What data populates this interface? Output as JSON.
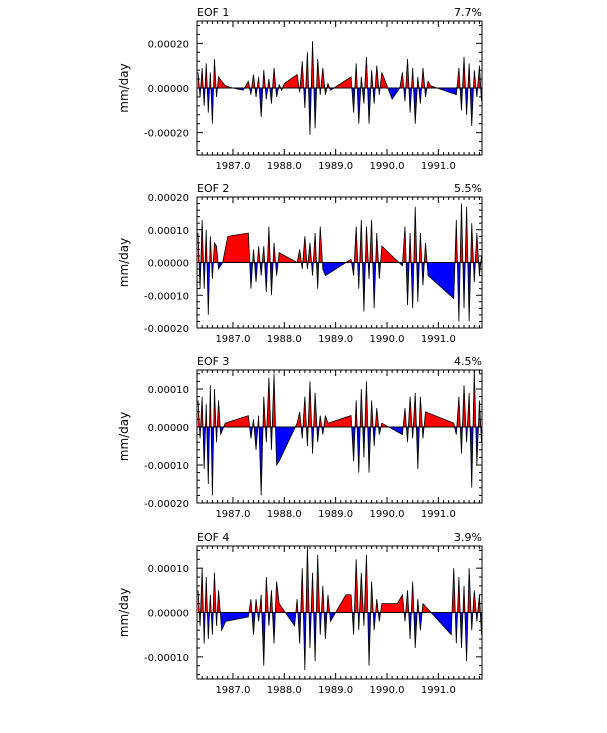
{
  "chart_data": [
    {
      "type": "area",
      "title": "EOF 1",
      "variance": "7.7%",
      "ylabel": "mm/day",
      "ylim": [
        -0.0003,
        0.0003
      ],
      "yticks": [
        0.0002,
        0.0,
        -0.0002
      ],
      "yticklabels": [
        "0.00020",
        "0.00000",
        "-0.00020"
      ],
      "xlim": [
        1986.3,
        1991.85
      ],
      "xticks": [
        1987.0,
        1988.0,
        1989.0,
        1990.0,
        1991.0
      ],
      "xticklabels": [
        "1987.0",
        "1988.0",
        "1989.0",
        "1990.0",
        "1991.0"
      ],
      "positive_color": "#ff0000",
      "negative_color": "#0000ff",
      "series": {
        "x": [
          1986.32,
          1986.36,
          1986.4,
          1986.44,
          1986.48,
          1986.52,
          1986.56,
          1986.6,
          1986.64,
          1986.68,
          1986.72,
          1986.78,
          1986.85,
          1986.92,
          1987.0,
          1987.1,
          1987.2,
          1987.3,
          1987.35,
          1987.4,
          1987.45,
          1987.5,
          1987.55,
          1987.6,
          1987.65,
          1987.7,
          1987.75,
          1987.8,
          1987.85,
          1987.9,
          1987.95,
          1988.0,
          1988.25,
          1988.3,
          1988.35,
          1988.4,
          1988.45,
          1988.5,
          1988.55,
          1988.6,
          1988.65,
          1988.7,
          1988.75,
          1988.8,
          1988.85,
          1988.9,
          1989.3,
          1989.35,
          1989.4,
          1989.45,
          1989.5,
          1989.55,
          1989.6,
          1989.65,
          1989.7,
          1989.75,
          1989.8,
          1989.85,
          1989.9,
          1990.1,
          1990.25,
          1990.3,
          1990.35,
          1990.4,
          1990.45,
          1990.5,
          1990.55,
          1990.6,
          1990.65,
          1990.7,
          1990.75,
          1990.8,
          1990.85,
          1991.35,
          1991.4,
          1991.45,
          1991.5,
          1991.55,
          1991.6,
          1991.65,
          1991.7,
          1991.75,
          1991.8,
          1991.84
        ],
        "y": [
          7e-05,
          -4e-05,
          9e-05,
          -8e-05,
          0.00011,
          -0.00011,
          7e-05,
          -0.00016,
          0.00013,
          -4e-05,
          5e-05,
          3e-05,
          1e-05,
          5e-06,
          0.0,
          -5e-06,
          -1e-05,
          3e-05,
          -3e-05,
          6e-05,
          -4e-05,
          5e-05,
          -0.00013,
          8e-05,
          -5e-05,
          4e-05,
          -7e-05,
          9e-05,
          -4e-05,
          1.5e-05,
          -1e-05,
          2e-05,
          6e-05,
          -2e-05,
          0.00012,
          -9e-05,
          0.00016,
          -0.00021,
          0.00021,
          -0.00018,
          0.00013,
          -3e-05,
          9e-05,
          -3e-05,
          2e-05,
          -1e-05,
          5e-05,
          -0.00011,
          0.00011,
          -0.00016,
          5e-05,
          -7e-05,
          0.00014,
          -0.00016,
          8e-05,
          -7e-05,
          0.0001,
          -3e-05,
          7e-05,
          -5e-05,
          0.0,
          7e-05,
          -6e-05,
          0.00013,
          -0.00011,
          9e-05,
          -0.00016,
          5e-05,
          -7e-05,
          9e-05,
          -4e-05,
          3e-05,
          1e-05,
          -3e-05,
          9e-05,
          -0.0001,
          0.00014,
          -0.00012,
          0.00011,
          -0.00017,
          8e-05,
          -4e-05,
          0.0001,
          -6e-05
        ]
      }
    },
    {
      "type": "area",
      "title": "EOF 2",
      "variance": "5.5%",
      "ylabel": "mm/day",
      "ylim": [
        -0.0002,
        0.0002
      ],
      "yticks": [
        0.0002,
        0.0001,
        0.0,
        -0.0001,
        -0.0002
      ],
      "yticklabels": [
        "0.00020",
        "0.00010",
        "0.00000",
        "-0.00010",
        "-0.00020"
      ],
      "xlim": [
        1986.3,
        1991.85
      ],
      "xticks": [
        1987.0,
        1988.0,
        1989.0,
        1990.0,
        1991.0
      ],
      "xticklabels": [
        "1987.0",
        "1988.0",
        "1989.0",
        "1990.0",
        "1991.0"
      ],
      "positive_color": "#ff0000",
      "negative_color": "#0000ff",
      "series": {
        "x": [
          1986.32,
          1986.36,
          1986.4,
          1986.44,
          1986.48,
          1986.52,
          1986.56,
          1986.6,
          1986.64,
          1986.68,
          1986.72,
          1986.8,
          1986.9,
          1987.3,
          1987.35,
          1987.4,
          1987.45,
          1987.5,
          1987.55,
          1987.6,
          1987.65,
          1987.7,
          1987.75,
          1987.8,
          1987.85,
          1987.9,
          1988.25,
          1988.3,
          1988.35,
          1988.4,
          1988.45,
          1988.5,
          1988.55,
          1988.6,
          1988.65,
          1988.7,
          1988.75,
          1988.8,
          1989.3,
          1989.35,
          1989.4,
          1989.45,
          1989.5,
          1989.55,
          1989.6,
          1989.65,
          1989.7,
          1989.75,
          1989.8,
          1989.85,
          1989.9,
          1990.3,
          1990.35,
          1990.4,
          1990.45,
          1990.5,
          1990.55,
          1990.6,
          1990.65,
          1990.7,
          1990.75,
          1990.8,
          1991.3,
          1991.35,
          1991.4,
          1991.45,
          1991.5,
          1991.55,
          1991.6,
          1991.65,
          1991.7,
          1991.75,
          1991.8,
          1991.84
        ],
        "y": [
          9e-05,
          -8e-05,
          0.00013,
          -8e-05,
          0.0001,
          -0.00016,
          8e-05,
          -5e-05,
          6e-05,
          5e-05,
          -2e-05,
          0.0,
          8e-05,
          9e-05,
          -8e-05,
          4e-05,
          -6e-05,
          5e-05,
          -4e-05,
          5e-05,
          -9e-05,
          0.00011,
          -0.0001,
          6e-05,
          -4e-05,
          3e-05,
          0.0,
          4e-05,
          -2e-05,
          8e-05,
          -2e-05,
          6e-05,
          -4e-05,
          9e-05,
          -8e-05,
          0.00011,
          -2e-05,
          -4e-05,
          1e-05,
          -4e-05,
          0.00011,
          -8e-05,
          0.00013,
          -0.00015,
          0.00011,
          -5e-05,
          0.00013,
          -0.00014,
          9e-05,
          -5e-05,
          5e-05,
          -1e-05,
          0.00011,
          -0.00013,
          9e-05,
          -0.00014,
          0.00017,
          -0.00012,
          9e-05,
          -7e-05,
          6e-05,
          -4e-05,
          -0.00011,
          0.00013,
          -0.00018,
          0.00018,
          -0.00014,
          0.00017,
          -0.00018,
          0.00012,
          -6e-05,
          9e-05,
          -4e-05,
          2e-05
        ]
      }
    },
    {
      "type": "area",
      "title": "EOF 3",
      "variance": "4.5%",
      "ylabel": "mm/day",
      "ylim": [
        -0.0002,
        0.00015
      ],
      "yticks": [
        0.0001,
        0.0,
        -0.0001,
        -0.0002
      ],
      "yticklabels": [
        "0.00010",
        "0.00000",
        "-0.00010",
        "-0.00020"
      ],
      "xlim": [
        1986.3,
        1991.85
      ],
      "xticks": [
        1987.0,
        1988.0,
        1989.0,
        1990.0,
        1991.0
      ],
      "xticklabels": [
        "1987.0",
        "1988.0",
        "1989.0",
        "1990.0",
        "1991.0"
      ],
      "positive_color": "#ff0000",
      "negative_color": "#0000ff",
      "series": {
        "x": [
          1986.32,
          1986.36,
          1986.4,
          1986.44,
          1986.48,
          1986.52,
          1986.56,
          1986.6,
          1986.64,
          1986.68,
          1986.72,
          1986.76,
          1986.85,
          1987.3,
          1987.35,
          1987.4,
          1987.45,
          1987.5,
          1987.55,
          1987.6,
          1987.65,
          1987.7,
          1987.75,
          1987.8,
          1987.85,
          1987.9,
          1988.25,
          1988.3,
          1988.35,
          1988.4,
          1988.45,
          1988.5,
          1988.55,
          1988.6,
          1988.65,
          1988.7,
          1988.75,
          1988.8,
          1988.85,
          1989.3,
          1989.35,
          1989.4,
          1989.45,
          1989.5,
          1989.55,
          1989.6,
          1989.65,
          1989.7,
          1989.75,
          1989.8,
          1989.85,
          1989.9,
          1990.3,
          1990.35,
          1990.4,
          1990.45,
          1990.5,
          1990.55,
          1990.6,
          1990.65,
          1990.7,
          1990.75,
          1991.3,
          1991.35,
          1991.4,
          1991.45,
          1991.5,
          1991.55,
          1991.6,
          1991.65,
          1991.7,
          1991.75,
          1991.8,
          1991.84
        ],
        "y": [
          7e-05,
          -3e-05,
          8e-05,
          -0.00011,
          6e-05,
          -0.00015,
          0.00011,
          -0.00018,
          0.0001,
          -4e-05,
          7e-05,
          -2e-05,
          1e-05,
          3e-05,
          -3e-05,
          2e-05,
          -6e-05,
          3e-05,
          -0.00018,
          8e-05,
          -4e-05,
          0.00013,
          -6e-05,
          0.00014,
          -0.0001,
          -9e-05,
          1e-05,
          4e-05,
          -3e-05,
          8e-05,
          -5e-05,
          0.00012,
          -7e-05,
          9e-05,
          -4e-05,
          3e-05,
          -2e-05,
          3e-05,
          1e-05,
          3e-05,
          -9e-05,
          7e-05,
          -0.00012,
          0.0001,
          -8e-05,
          0.00012,
          -0.00012,
          7e-05,
          -5e-05,
          5e-05,
          -2e-05,
          1e-05,
          -2e-05,
          5e-05,
          -4e-05,
          8e-05,
          -3e-05,
          9e-05,
          -0.00011,
          8e-05,
          -3e-05,
          4e-05,
          1e-05,
          -2e-05,
          8e-05,
          -7e-05,
          0.00011,
          -4e-05,
          9e-05,
          -0.00016,
          0.00015,
          -0.0001,
          7e-05,
          -4e-05
        ]
      }
    },
    {
      "type": "area",
      "title": "EOF 4",
      "variance": "3.9%",
      "ylabel": "mm/day",
      "ylim": [
        -0.00015,
        0.00015
      ],
      "yticks": [
        0.0001,
        0.0,
        -0.0001
      ],
      "yticklabels": [
        "0.00010",
        "0.00000",
        "-0.00010"
      ],
      "xlim": [
        1986.3,
        1991.85
      ],
      "xticks": [
        1987.0,
        1988.0,
        1989.0,
        1990.0,
        1991.0
      ],
      "xticklabels": [
        "1987.0",
        "1988.0",
        "1989.0",
        "1990.0",
        "1991.0"
      ],
      "positive_color": "#ff0000",
      "negative_color": "#0000ff",
      "series": {
        "x": [
          1986.32,
          1986.36,
          1986.4,
          1986.44,
          1986.48,
          1986.52,
          1986.56,
          1986.6,
          1986.64,
          1986.68,
          1986.72,
          1986.78,
          1986.86,
          1987.3,
          1987.35,
          1987.4,
          1987.45,
          1987.5,
          1987.55,
          1987.6,
          1987.65,
          1987.7,
          1987.75,
          1987.8,
          1987.85,
          1987.9,
          1988.2,
          1988.25,
          1988.3,
          1988.35,
          1988.4,
          1988.45,
          1988.5,
          1988.55,
          1988.6,
          1988.65,
          1988.7,
          1988.75,
          1988.8,
          1988.85,
          1988.9,
          1989.2,
          1989.3,
          1989.35,
          1989.4,
          1989.45,
          1989.5,
          1989.55,
          1989.6,
          1989.65,
          1989.7,
          1989.75,
          1989.8,
          1989.85,
          1989.9,
          1990.2,
          1990.3,
          1990.35,
          1990.4,
          1990.45,
          1990.5,
          1990.55,
          1990.6,
          1990.65,
          1990.7,
          1991.25,
          1991.3,
          1991.35,
          1991.4,
          1991.45,
          1991.5,
          1991.55,
          1991.6,
          1991.65,
          1991.7,
          1991.75,
          1991.8,
          1991.84
        ],
        "y": [
          5e-05,
          -3e-05,
          0.0001,
          -7e-05,
          8e-05,
          -6e-05,
          4e-05,
          -5e-05,
          9e-05,
          -3e-05,
          5e-05,
          -4e-05,
          -2e-05,
          -1e-05,
          3e-05,
          -5e-05,
          3e-05,
          -2e-05,
          4e-05,
          -0.00012,
          8e-05,
          -3e-05,
          5e-05,
          -7e-05,
          7e-05,
          2e-05,
          -3e-05,
          3e-05,
          -7e-05,
          0.0001,
          -0.00013,
          0.00015,
          -8e-05,
          9e-05,
          -0.00011,
          0.00013,
          -5e-05,
          6e-05,
          -6e-05,
          4e-05,
          -2e-05,
          4e-05,
          4e-05,
          -5e-05,
          0.00012,
          -4e-05,
          9e-05,
          -3e-05,
          0.00013,
          -0.00012,
          7e-05,
          -4e-05,
          3e-05,
          -2e-05,
          2e-05,
          2e-05,
          4e-05,
          -2e-05,
          5e-05,
          -6e-05,
          7e-05,
          -8e-05,
          3e-05,
          -4e-05,
          2e-05,
          -5e-05,
          0.0001,
          -7e-05,
          8e-05,
          -8e-05,
          6e-05,
          -0.00011,
          0.0001,
          -4e-05,
          5e-05,
          -2e-05,
          4e-05,
          -5e-05
        ]
      }
    }
  ]
}
